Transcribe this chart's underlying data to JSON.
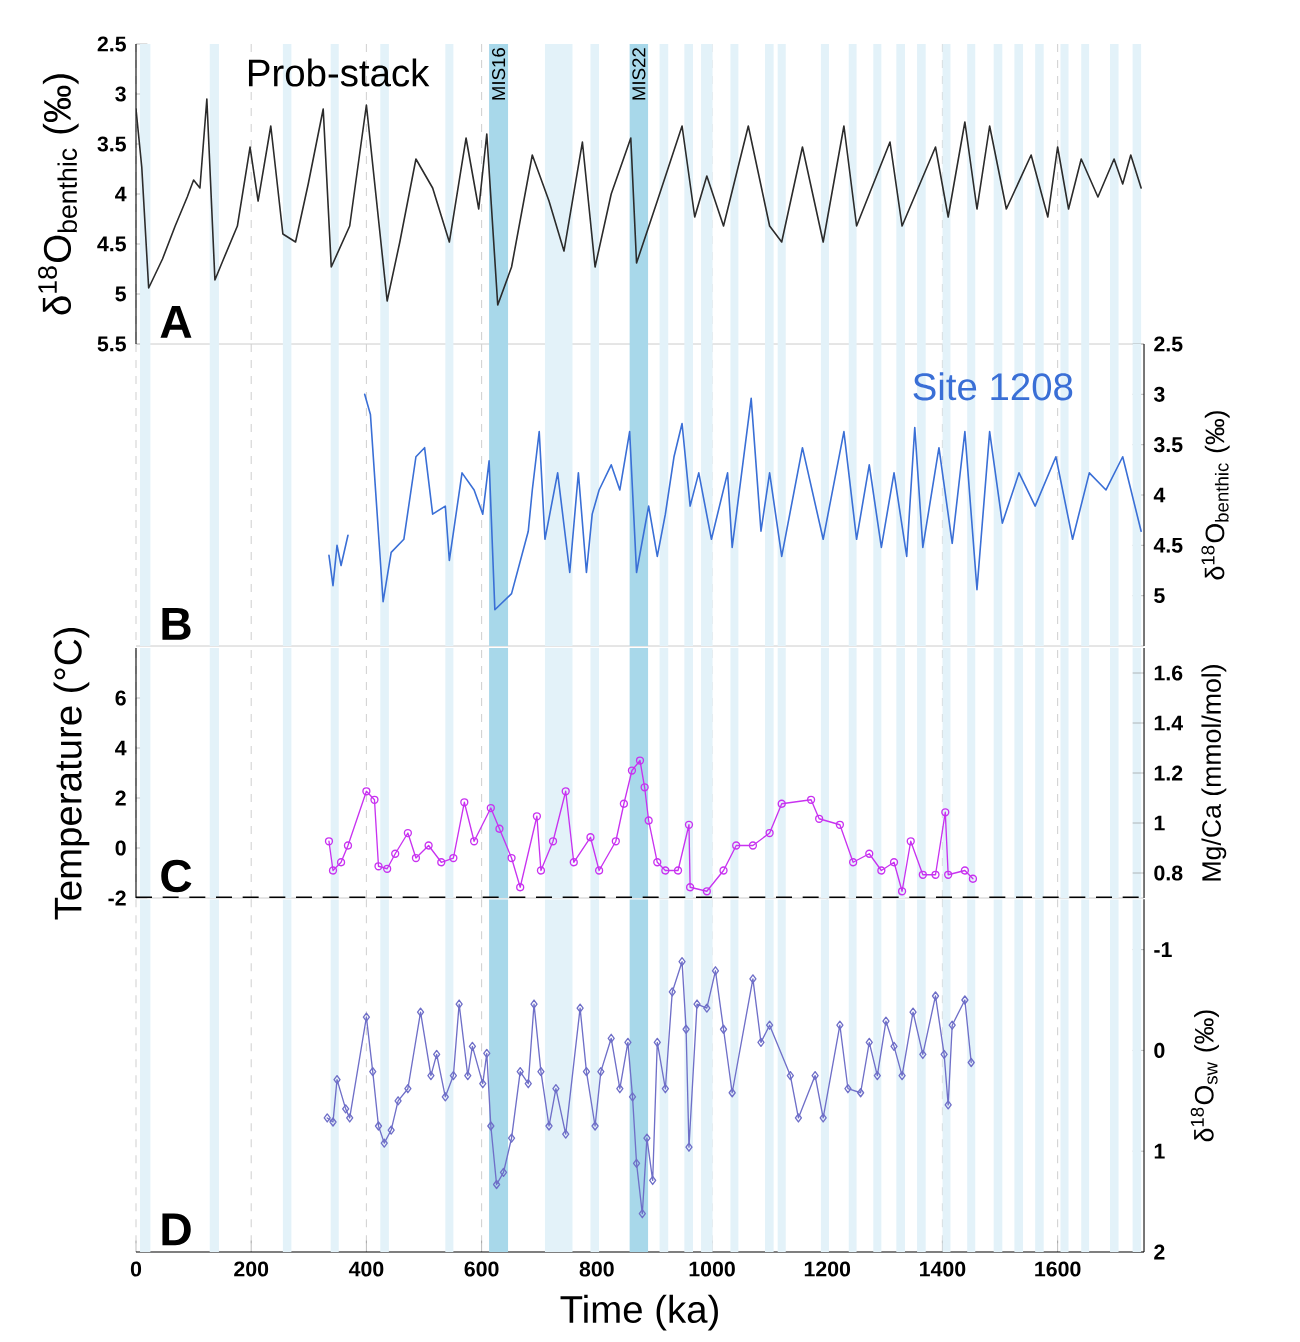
{
  "chart_data": [
    {
      "type": "line",
      "ylabel": "δ$^{18}$O$_{benthic}$ (‰)",
      "annotations": [
        "A"
      ],
      "xlim": [
        0,
        1750
      ],
      "xticks": [
        0,
        200,
        400,
        600,
        800,
        1000,
        1200,
        1400,
        1600
      ],
      "ylim": [
        5.5,
        2.5
      ],
      "yticks": [
        2.5,
        3,
        3.5,
        4,
        4.5,
        5,
        5.5
      ],
      "tick_labels": "y",
      "grid": "x",
      "marker": "none",
      "line_style": "solid",
      "bands": [
        {
          "axis": "x",
          "from": 7,
          "to": 25,
          "color": "#e3f2f9"
        },
        {
          "axis": "x",
          "from": 128,
          "to": 144,
          "color": "#e3f2f9"
        },
        {
          "axis": "x",
          "from": 255,
          "to": 270,
          "color": "#e3f2f9"
        },
        {
          "axis": "x",
          "from": 338,
          "to": 352,
          "color": "#e3f2f9"
        },
        {
          "axis": "x",
          "from": 424,
          "to": 439,
          "color": "#e3f2f9"
        },
        {
          "axis": "x",
          "from": 537,
          "to": 551,
          "color": "#e3f2f9"
        },
        {
          "axis": "x",
          "from": 613,
          "to": 646,
          "color": "#a8d8ea",
          "label": "MIS16"
        },
        {
          "axis": "x",
          "from": 710,
          "to": 758,
          "color": "#e3f2f9"
        },
        {
          "axis": "x",
          "from": 789,
          "to": 804,
          "color": "#e3f2f9"
        },
        {
          "axis": "x",
          "from": 857,
          "to": 889,
          "color": "#a8d8ea",
          "label": "MIS22"
        },
        {
          "axis": "x",
          "from": 909,
          "to": 924,
          "color": "#e3f2f9"
        },
        {
          "axis": "x",
          "from": 952,
          "to": 967,
          "color": "#e3f2f9"
        },
        {
          "axis": "x",
          "from": 981,
          "to": 1001,
          "color": "#e3f2f9"
        },
        {
          "axis": "x",
          "from": 1032,
          "to": 1046,
          "color": "#e3f2f9"
        },
        {
          "axis": "x",
          "from": 1092,
          "to": 1107,
          "color": "#e3f2f9"
        },
        {
          "axis": "x",
          "from": 1114,
          "to": 1128,
          "color": "#e3f2f9"
        },
        {
          "axis": "x",
          "from": 1189,
          "to": 1203,
          "color": "#e3f2f9"
        },
        {
          "axis": "x",
          "from": 1237,
          "to": 1251,
          "color": "#e3f2f9"
        },
        {
          "axis": "x",
          "from": 1280,
          "to": 1294,
          "color": "#e3f2f9"
        },
        {
          "axis": "x",
          "from": 1320,
          "to": 1335,
          "color": "#e3f2f9"
        },
        {
          "axis": "x",
          "from": 1356,
          "to": 1371,
          "color": "#e3f2f9"
        },
        {
          "axis": "x",
          "from": 1400,
          "to": 1414,
          "color": "#e3f2f9"
        },
        {
          "axis": "x",
          "from": 1443,
          "to": 1457,
          "color": "#e3f2f9"
        },
        {
          "axis": "x",
          "from": 1489,
          "to": 1504,
          "color": "#e3f2f9"
        },
        {
          "axis": "x",
          "from": 1525,
          "to": 1540,
          "color": "#e3f2f9"
        },
        {
          "axis": "x",
          "from": 1561,
          "to": 1576,
          "color": "#e3f2f9"
        },
        {
          "axis": "x",
          "from": 1605,
          "to": 1619,
          "color": "#e3f2f9"
        },
        {
          "axis": "x",
          "from": 1641,
          "to": 1655,
          "color": "#e3f2f9"
        },
        {
          "axis": "x",
          "from": 1691,
          "to": 1706,
          "color": "#e3f2f9"
        },
        {
          "axis": "x",
          "from": 1730,
          "to": 1745,
          "color": "#e3f2f9"
        }
      ],
      "series": [
        {
          "name": "Prob-stack",
          "color": "#2b2b2b",
          "x": [
            0,
            10,
            22,
            46,
            68,
            89,
            100,
            111,
            123,
            137,
            152,
            176,
            198,
            212,
            234,
            255,
            277,
            299,
            325,
            339,
            371,
            400,
            436,
            458,
            486,
            515,
            544,
            573,
            595,
            609,
            628,
            652,
            688,
            717,
            743,
            775,
            797,
            825,
            859,
            869,
            905,
            948,
            970,
            991,
            1020,
            1063,
            1100,
            1121,
            1157,
            1193,
            1229,
            1251,
            1309,
            1330,
            1388,
            1410,
            1439,
            1460,
            1482,
            1511,
            1554,
            1583,
            1600,
            1619,
            1641,
            1670,
            1698,
            1713,
            1727,
            1745
          ],
          "values": [
            3.15,
            3.73,
            4.94,
            4.65,
            4.32,
            4.03,
            3.86,
            3.94,
            3.05,
            4.86,
            4.65,
            4.32,
            3.53,
            4.07,
            3.32,
            4.4,
            4.48,
            3.9,
            3.15,
            4.73,
            4.32,
            3.11,
            5.07,
            4.48,
            3.65,
            3.94,
            4.48,
            3.44,
            4.15,
            3.4,
            5.11,
            4.73,
            3.61,
            4.07,
            4.57,
            3.48,
            4.73,
            4.0,
            3.44,
            4.69,
            4.07,
            3.32,
            4.23,
            3.82,
            4.32,
            3.32,
            4.32,
            4.48,
            3.53,
            4.48,
            3.32,
            4.32,
            3.48,
            4.32,
            3.53,
            4.23,
            3.28,
            4.15,
            3.32,
            4.15,
            3.61,
            4.23,
            3.53,
            4.15,
            3.65,
            4.03,
            3.65,
            3.9,
            3.61,
            3.94
          ]
        }
      ]
    },
    {
      "type": "line",
      "y2label": "δ$^{18}$O$_{benthic}$ (‰)",
      "annotations": [
        "B"
      ],
      "xlim": [
        0,
        1750
      ],
      "xticks": [
        0,
        200,
        400,
        600,
        800,
        1000,
        1200,
        1400,
        1600
      ],
      "y2lim": [
        5.5,
        2.5
      ],
      "y2ticks": [
        2.5,
        3,
        3.5,
        4,
        4.5,
        5
      ],
      "tick_labels": "y",
      "grid": "x",
      "marker": "none",
      "line_style": "solid",
      "bands": [
        {
          "axis": "x",
          "from": 7,
          "to": 25,
          "color": "#e3f2f9"
        },
        {
          "axis": "x",
          "from": 128,
          "to": 144,
          "color": "#e3f2f9"
        },
        {
          "axis": "x",
          "from": 255,
          "to": 270,
          "color": "#e3f2f9"
        },
        {
          "axis": "x",
          "from": 338,
          "to": 352,
          "color": "#e3f2f9"
        },
        {
          "axis": "x",
          "from": 424,
          "to": 439,
          "color": "#e3f2f9"
        },
        {
          "axis": "x",
          "from": 537,
          "to": 551,
          "color": "#e3f2f9"
        },
        {
          "axis": "x",
          "from": 613,
          "to": 646,
          "color": "#a8d8ea"
        },
        {
          "axis": "x",
          "from": 710,
          "to": 758,
          "color": "#e3f2f9"
        },
        {
          "axis": "x",
          "from": 789,
          "to": 804,
          "color": "#e3f2f9"
        },
        {
          "axis": "x",
          "from": 857,
          "to": 889,
          "color": "#a8d8ea"
        },
        {
          "axis": "x",
          "from": 909,
          "to": 924,
          "color": "#e3f2f9"
        },
        {
          "axis": "x",
          "from": 952,
          "to": 967,
          "color": "#e3f2f9"
        },
        {
          "axis": "x",
          "from": 981,
          "to": 1001,
          "color": "#e3f2f9"
        },
        {
          "axis": "x",
          "from": 1032,
          "to": 1046,
          "color": "#e3f2f9"
        },
        {
          "axis": "x",
          "from": 1092,
          "to": 1107,
          "color": "#e3f2f9"
        },
        {
          "axis": "x",
          "from": 1114,
          "to": 1128,
          "color": "#e3f2f9"
        },
        {
          "axis": "x",
          "from": 1189,
          "to": 1203,
          "color": "#e3f2f9"
        },
        {
          "axis": "x",
          "from": 1237,
          "to": 1251,
          "color": "#e3f2f9"
        },
        {
          "axis": "x",
          "from": 1280,
          "to": 1294,
          "color": "#e3f2f9"
        },
        {
          "axis": "x",
          "from": 1320,
          "to": 1335,
          "color": "#e3f2f9"
        },
        {
          "axis": "x",
          "from": 1356,
          "to": 1371,
          "color": "#e3f2f9"
        },
        {
          "axis": "x",
          "from": 1400,
          "to": 1414,
          "color": "#e3f2f9"
        },
        {
          "axis": "x",
          "from": 1443,
          "to": 1457,
          "color": "#e3f2f9"
        },
        {
          "axis": "x",
          "from": 1489,
          "to": 1504,
          "color": "#e3f2f9"
        },
        {
          "axis": "x",
          "from": 1525,
          "to": 1540,
          "color": "#e3f2f9"
        },
        {
          "axis": "x",
          "from": 1561,
          "to": 1576,
          "color": "#e3f2f9"
        },
        {
          "axis": "x",
          "from": 1605,
          "to": 1619,
          "color": "#e3f2f9"
        },
        {
          "axis": "x",
          "from": 1641,
          "to": 1655,
          "color": "#e3f2f9"
        },
        {
          "axis": "x",
          "from": 1691,
          "to": 1706,
          "color": "#e3f2f9"
        },
        {
          "axis": "x",
          "from": 1730,
          "to": 1745,
          "color": "#e3f2f9"
        }
      ],
      "series": [
        {
          "name": "Site 1208",
          "color": "#3a6fd6",
          "axis": "y2",
          "x": [
            335,
            342,
            349,
            356,
            368,
            380,
            397,
            407,
            429,
            443,
            465,
            486,
            501,
            515,
            537,
            544,
            566,
            587,
            602,
            613,
            623,
            652,
            681,
            688,
            700,
            710,
            732,
            753,
            768,
            782,
            792,
            804,
            825,
            840,
            857,
            869,
            890,
            905,
            919,
            934,
            948,
            962,
            977,
            999,
            1027,
            1035,
            1068,
            1085,
            1100,
            1121,
            1157,
            1193,
            1229,
            1251,
            1273,
            1294,
            1316,
            1338,
            1352,
            1366,
            1394,
            1417,
            1439,
            1460,
            1482,
            1504,
            1533,
            1561,
            1597,
            1626,
            1655,
            1684,
            1713,
            1745
          ],
          "values": [
            4.6,
            4.9,
            4.5,
            4.7,
            4.4,
            null,
            3.0,
            3.2,
            5.06,
            4.57,
            4.44,
            3.62,
            3.53,
            4.19,
            4.11,
            4.65,
            3.78,
            3.95,
            4.19,
            3.66,
            5.14,
            4.98,
            4.36,
            3.95,
            3.37,
            4.44,
            3.78,
            4.77,
            3.78,
            4.77,
            4.19,
            3.95,
            3.7,
            3.95,
            3.37,
            4.77,
            4.11,
            4.61,
            4.19,
            3.62,
            3.29,
            4.11,
            3.78,
            4.44,
            3.78,
            4.52,
            3.04,
            4.36,
            3.78,
            4.61,
            3.53,
            4.44,
            3.37,
            4.44,
            3.7,
            4.52,
            3.78,
            4.61,
            3.33,
            4.52,
            3.53,
            4.48,
            3.37,
            4.94,
            3.37,
            4.28,
            3.78,
            4.11,
            3.62,
            4.44,
            3.78,
            3.95,
            3.62,
            4.36
          ]
        }
      ]
    },
    {
      "type": "line",
      "ylabel": "Temperature (°C)",
      "y2label": "Mg/Ca (mmol/mol)",
      "annotations": [
        "C"
      ],
      "xlim": [
        0,
        1750
      ],
      "xticks": [
        0,
        200,
        400,
        600,
        800,
        1000,
        1200,
        1400,
        1600
      ],
      "ylim": [
        -2,
        8
      ],
      "yticks": [
        -2,
        0,
        2,
        4,
        6
      ],
      "y2lim": [
        0.7,
        1.7
      ],
      "y2ticks": [
        0.8,
        1,
        1.2,
        1.4,
        1.6
      ],
      "tick_labels": "y",
      "grid": "x",
      "marker": "circle",
      "line_style": "solid",
      "ref_lines": [
        {
          "axis": "y",
          "value": -2,
          "color": "#000000",
          "line_style": "dashed"
        }
      ],
      "bands": [
        {
          "axis": "x",
          "from": 7,
          "to": 25,
          "color": "#e3f2f9"
        },
        {
          "axis": "x",
          "from": 128,
          "to": 144,
          "color": "#e3f2f9"
        },
        {
          "axis": "x",
          "from": 255,
          "to": 270,
          "color": "#e3f2f9"
        },
        {
          "axis": "x",
          "from": 338,
          "to": 352,
          "color": "#e3f2f9"
        },
        {
          "axis": "x",
          "from": 424,
          "to": 439,
          "color": "#e3f2f9"
        },
        {
          "axis": "x",
          "from": 537,
          "to": 551,
          "color": "#e3f2f9"
        },
        {
          "axis": "x",
          "from": 613,
          "to": 646,
          "color": "#a8d8ea"
        },
        {
          "axis": "x",
          "from": 710,
          "to": 758,
          "color": "#e3f2f9"
        },
        {
          "axis": "x",
          "from": 789,
          "to": 804,
          "color": "#e3f2f9"
        },
        {
          "axis": "x",
          "from": 857,
          "to": 889,
          "color": "#a8d8ea"
        },
        {
          "axis": "x",
          "from": 909,
          "to": 924,
          "color": "#e3f2f9"
        },
        {
          "axis": "x",
          "from": 952,
          "to": 967,
          "color": "#e3f2f9"
        },
        {
          "axis": "x",
          "from": 981,
          "to": 1001,
          "color": "#e3f2f9"
        },
        {
          "axis": "x",
          "from": 1032,
          "to": 1046,
          "color": "#e3f2f9"
        },
        {
          "axis": "x",
          "from": 1092,
          "to": 1107,
          "color": "#e3f2f9"
        },
        {
          "axis": "x",
          "from": 1114,
          "to": 1128,
          "color": "#e3f2f9"
        },
        {
          "axis": "x",
          "from": 1189,
          "to": 1203,
          "color": "#e3f2f9"
        },
        {
          "axis": "x",
          "from": 1237,
          "to": 1251,
          "color": "#e3f2f9"
        },
        {
          "axis": "x",
          "from": 1280,
          "to": 1294,
          "color": "#e3f2f9"
        },
        {
          "axis": "x",
          "from": 1320,
          "to": 1335,
          "color": "#e3f2f9"
        },
        {
          "axis": "x",
          "from": 1356,
          "to": 1371,
          "color": "#e3f2f9"
        },
        {
          "axis": "x",
          "from": 1400,
          "to": 1414,
          "color": "#e3f2f9"
        },
        {
          "axis": "x",
          "from": 1443,
          "to": 1457,
          "color": "#e3f2f9"
        },
        {
          "axis": "x",
          "from": 1489,
          "to": 1504,
          "color": "#e3f2f9"
        },
        {
          "axis": "x",
          "from": 1525,
          "to": 1540,
          "color": "#e3f2f9"
        },
        {
          "axis": "x",
          "from": 1561,
          "to": 1576,
          "color": "#e3f2f9"
        },
        {
          "axis": "x",
          "from": 1605,
          "to": 1619,
          "color": "#e3f2f9"
        },
        {
          "axis": "x",
          "from": 1641,
          "to": 1655,
          "color": "#e3f2f9"
        },
        {
          "axis": "x",
          "from": 1691,
          "to": 1706,
          "color": "#e3f2f9"
        },
        {
          "axis": "x",
          "from": 1730,
          "to": 1745,
          "color": "#e3f2f9"
        }
      ],
      "series": [
        {
          "color": "#c832f0",
          "x": [
            335,
            342,
            356,
            368,
            400,
            414,
            421,
            436,
            450,
            472,
            486,
            508,
            530,
            551,
            570,
            587,
            616,
            631,
            652,
            667,
            696,
            703,
            724,
            746,
            760,
            789,
            804,
            833,
            847,
            861,
            875,
            883,
            890,
            905,
            919,
            941,
            960,
            962,
            991,
            1020,
            1042,
            1071,
            1100,
            1121,
            1172,
            1186,
            1222,
            1245,
            1273,
            1294,
            1316,
            1330,
            1345,
            1366,
            1388,
            1405,
            1410,
            1439,
            1453
          ],
          "values": [
            0.27,
            -0.9,
            -0.57,
            0.1,
            2.27,
            1.93,
            -0.73,
            -0.83,
            -0.23,
            0.6,
            -0.4,
            0.1,
            -0.57,
            -0.4,
            1.83,
            0.27,
            1.6,
            0.77,
            -0.4,
            -1.57,
            1.27,
            -0.9,
            0.27,
            2.27,
            -0.57,
            0.43,
            -0.9,
            0.27,
            1.77,
            3.1,
            3.5,
            2.43,
            1.1,
            -0.57,
            -0.9,
            -0.9,
            0.93,
            -1.57,
            -1.73,
            -0.9,
            0.1,
            0.1,
            0.6,
            1.77,
            1.93,
            1.17,
            0.93,
            -0.57,
            -0.23,
            -0.9,
            -0.57,
            -1.73,
            0.27,
            -1.07,
            -1.07,
            1.43,
            -1.07,
            -0.9,
            -1.23
          ]
        }
      ]
    },
    {
      "type": "line",
      "xlabel": "Time (ka)",
      "y2label": "δ$^{18}$O$_{sw}$ (‰)",
      "annotations": [
        "D"
      ],
      "xlim": [
        0,
        1750
      ],
      "xticks": [
        0,
        200,
        400,
        600,
        800,
        1000,
        1200,
        1400,
        1600
      ],
      "y2lim": [
        2,
        -1.5
      ],
      "y2ticks": [
        -1,
        0,
        1,
        2
      ],
      "grid": "x",
      "marker": "diamond",
      "line_style": "solid",
      "bands": [
        {
          "axis": "x",
          "from": 7,
          "to": 25,
          "color": "#e3f2f9"
        },
        {
          "axis": "x",
          "from": 128,
          "to": 144,
          "color": "#e3f2f9"
        },
        {
          "axis": "x",
          "from": 255,
          "to": 270,
          "color": "#e3f2f9"
        },
        {
          "axis": "x",
          "from": 338,
          "to": 352,
          "color": "#e3f2f9"
        },
        {
          "axis": "x",
          "from": 424,
          "to": 439,
          "color": "#e3f2f9"
        },
        {
          "axis": "x",
          "from": 537,
          "to": 551,
          "color": "#e3f2f9"
        },
        {
          "axis": "x",
          "from": 613,
          "to": 646,
          "color": "#a8d8ea"
        },
        {
          "axis": "x",
          "from": 710,
          "to": 758,
          "color": "#e3f2f9"
        },
        {
          "axis": "x",
          "from": 789,
          "to": 804,
          "color": "#e3f2f9"
        },
        {
          "axis": "x",
          "from": 857,
          "to": 889,
          "color": "#a8d8ea"
        },
        {
          "axis": "x",
          "from": 909,
          "to": 924,
          "color": "#e3f2f9"
        },
        {
          "axis": "x",
          "from": 952,
          "to": 967,
          "color": "#e3f2f9"
        },
        {
          "axis": "x",
          "from": 981,
          "to": 1001,
          "color": "#e3f2f9"
        },
        {
          "axis": "x",
          "from": 1032,
          "to": 1046,
          "color": "#e3f2f9"
        },
        {
          "axis": "x",
          "from": 1092,
          "to": 1107,
          "color": "#e3f2f9"
        },
        {
          "axis": "x",
          "from": 1114,
          "to": 1128,
          "color": "#e3f2f9"
        },
        {
          "axis": "x",
          "from": 1189,
          "to": 1203,
          "color": "#e3f2f9"
        },
        {
          "axis": "x",
          "from": 1237,
          "to": 1251,
          "color": "#e3f2f9"
        },
        {
          "axis": "x",
          "from": 1280,
          "to": 1294,
          "color": "#e3f2f9"
        },
        {
          "axis": "x",
          "from": 1320,
          "to": 1335,
          "color": "#e3f2f9"
        },
        {
          "axis": "x",
          "from": 1356,
          "to": 1371,
          "color": "#e3f2f9"
        },
        {
          "axis": "x",
          "from": 1400,
          "to": 1414,
          "color": "#e3f2f9"
        },
        {
          "axis": "x",
          "from": 1443,
          "to": 1457,
          "color": "#e3f2f9"
        },
        {
          "axis": "x",
          "from": 1489,
          "to": 1504,
          "color": "#e3f2f9"
        },
        {
          "axis": "x",
          "from": 1525,
          "to": 1540,
          "color": "#e3f2f9"
        },
        {
          "axis": "x",
          "from": 1561,
          "to": 1576,
          "color": "#e3f2f9"
        },
        {
          "axis": "x",
          "from": 1605,
          "to": 1619,
          "color": "#e3f2f9"
        },
        {
          "axis": "x",
          "from": 1641,
          "to": 1655,
          "color": "#e3f2f9"
        },
        {
          "axis": "x",
          "from": 1691,
          "to": 1706,
          "color": "#e3f2f9"
        },
        {
          "axis": "x",
          "from": 1730,
          "to": 1745,
          "color": "#e3f2f9"
        }
      ],
      "series": [
        {
          "color": "#6f6fc8",
          "axis": "y2",
          "x": [
            332,
            342,
            349,
            364,
            371,
            400,
            411,
            421,
            431,
            443,
            455,
            472,
            494,
            512,
            522,
            537,
            551,
            561,
            576,
            584,
            602,
            609,
            616,
            626,
            638,
            652,
            667,
            681,
            691,
            703,
            717,
            729,
            746,
            771,
            782,
            797,
            807,
            825,
            840,
            854,
            862,
            869,
            879,
            887,
            897,
            905,
            919,
            931,
            948,
            955,
            960,
            974,
            991,
            1006,
            1020,
            1035,
            1071,
            1085,
            1100,
            1136,
            1150,
            1179,
            1193,
            1222,
            1236,
            1258,
            1273,
            1287,
            1302,
            1316,
            1330,
            1349,
            1366,
            1388,
            1403,
            1410,
            1417,
            1439,
            1450
          ],
          "values": [
            0.67,
            0.71,
            0.29,
            0.58,
            0.67,
            -0.33,
            0.21,
            0.75,
            0.92,
            0.79,
            0.5,
            0.38,
            -0.38,
            0.25,
            0.04,
            0.46,
            0.25,
            -0.46,
            0.25,
            -0.04,
            0.33,
            0.03,
            0.75,
            1.33,
            1.21,
            0.87,
            0.21,
            0.33,
            -0.46,
            0.21,
            0.75,
            0.38,
            0.83,
            -0.42,
            0.21,
            0.75,
            0.21,
            -0.12,
            0.38,
            -0.08,
            0.46,
            1.12,
            1.62,
            0.87,
            1.29,
            -0.08,
            0.38,
            -0.58,
            -0.88,
            -0.21,
            0.96,
            -0.46,
            -0.42,
            -0.79,
            -0.21,
            0.42,
            -0.71,
            -0.08,
            -0.25,
            0.25,
            0.67,
            0.25,
            0.67,
            -0.25,
            0.38,
            0.42,
            -0.08,
            0.25,
            -0.29,
            -0.04,
            0.25,
            -0.38,
            0.04,
            -0.54,
            0.04,
            0.54,
            -0.25,
            -0.5,
            0.12
          ]
        }
      ]
    }
  ]
}
